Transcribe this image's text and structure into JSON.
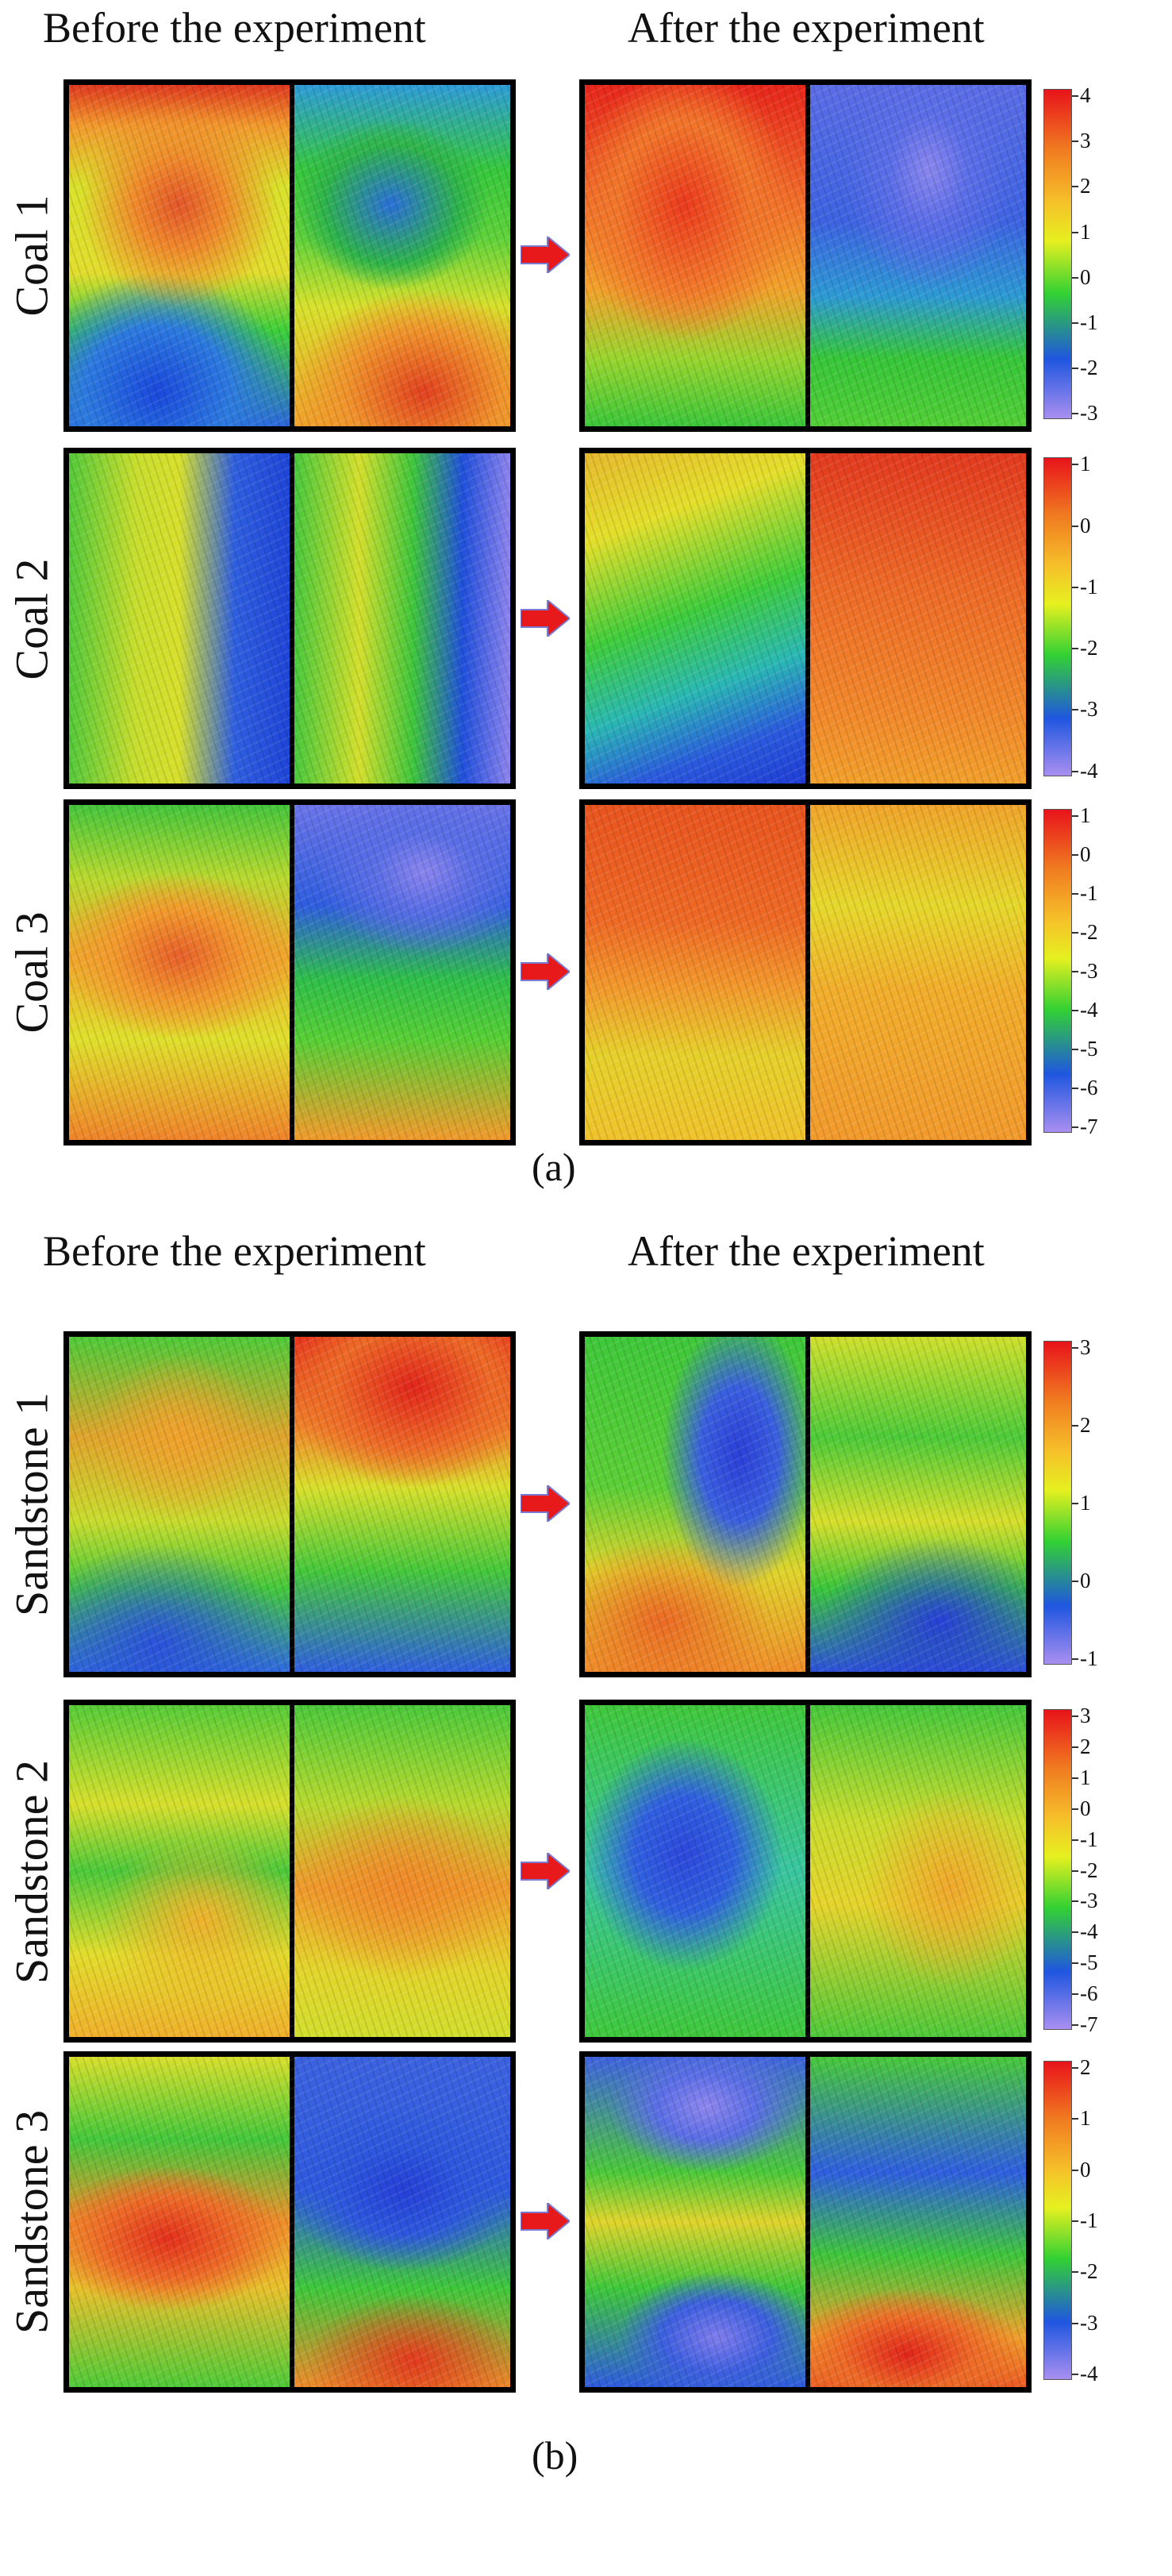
{
  "sections": [
    {
      "caption": "(a)",
      "before_label": "Before the experiment",
      "after_label": "After the experiment",
      "rows": [
        {
          "label": "Coal 1",
          "scale_ticks": [
            "4",
            "3",
            "2",
            "1",
            "0",
            "-1",
            "-2",
            "-3"
          ],
          "before": {
            "left": "radial-gradient(ellipse 45% 30% at 50% 35%, #e4562a 0%, #f08a2b 45%, rgba(240,170,40,0) 100%), radial-gradient(ellipse 60% 35% at 40% 90%, #1a48dd 0%, #2c7ae0 55%, rgba(40,200,60,0) 100%), linear-gradient(to bottom,#e0391f 0%,#f29a2c 12%,#d9e22a 30%,#e2dd2c 55%,#3ccf3a 72%,#2b66dd 100%)",
            "right": "radial-gradient(ellipse 45% 25% at 45% 35%, #2a6fd8 0%, #2fb44a 70%, rgba(50,200,60,0) 100%), radial-gradient(ellipse 60% 30% at 60% 90%, #e2411f 0%, #f0932b 60%, rgba(240,150,40,0) 100%), linear-gradient(to bottom,#2e9cd8 0%,#36c83c 25%,#5fd23a 45%,#d8e12b 65%,#f2a02a 100%)"
          },
          "after": {
            "left": "radial-gradient(ellipse 50% 40% at 45% 35%, #ec3a1d 0%, #f2762a 60%, rgba(245,150,40,0) 100%), linear-gradient(to bottom,#e8261b 0%,#f2702a 35%,#f2a22b 60%,#9ad52e 80%,#3bc73a 100%)",
            "right": "radial-gradient(ellipse 40% 35% at 55% 25%, #8a86ee 0%, #5b6ee8 45%, rgba(40,110,220,0) 100%), linear-gradient(to bottom,#5b6de6 0%,#3d63e2 40%,#2d9ad4 62%,#37c63a 80%,#52cf36 100%)"
          }
        },
        {
          "label": "Coal 2",
          "scale_ticks": [
            "1",
            "0",
            "-1",
            "-2",
            "-3",
            "-4"
          ],
          "before": {
            "left": "linear-gradient(to right,#53c93a 0%,#c7dd2d 30%,#d7e02b 50%,#2f5fe0 75%,#1e45d8 100%)",
            "right": "linear-gradient(to right,#47c83c 0%,#d3df2c 30%,#3fc63c 55%,#2050dc 78%,#8d84ee 100%)"
          },
          "after": {
            "left": "linear-gradient(160deg,#e6b82c 0%,#e4df2a 22%,#3fcd3b 48%,#2ab8b4 68%,#2a5ade 85%,#1f3dd6 100%)",
            "right": "linear-gradient(to bottom,#e33a1f 0%,#ee6a27 40%,#f28a2b 80%,#f2a02b 100%)"
          }
        },
        {
          "label": "Coal 3",
          "scale_ticks": [
            "1",
            "0",
            "-1",
            "-2",
            "-3",
            "-4",
            "-5",
            "-6",
            "-7"
          ],
          "before": {
            "left": "radial-gradient(ellipse 55% 25% at 50% 45%, #e8602a 0%, #f29a2c 55%, rgba(240,190,40,0) 100%), linear-gradient(to bottom,#44c53b 0%,#b9d92e 22%,#f0a82b 45%,#dfe02b 70%,#f0832a 100%)",
            "right": "radial-gradient(ellipse 50% 25% at 60% 20%, #8a84ee 0%, #5a6ee6 45%, rgba(40,90,220,0) 100%), linear-gradient(to bottom,#6b74e8 0%,#2f5ee0 30%,#2fbf4a 52%,#57cf35 70%,#f29a2b 100%)"
          },
          "after": {
            "left": "linear-gradient(to bottom,#e9541f 0%,#ef6a25 35%,#f29a2c 55%,#e6d12b 75%,#f0c22b 100%)",
            "right": "linear-gradient(to bottom,#f0a42a 0%,#e6d82b 30%,#f2ae2b 55%,#f29a2c 100%)"
          }
        }
      ]
    },
    {
      "caption": "(b)",
      "before_label": "Before the experiment",
      "after_label": "After the experiment",
      "rows": [
        {
          "label": "Sandstone 1",
          "scale_ticks": [
            "3",
            "2",
            "1",
            "0",
            "-1"
          ],
          "before": {
            "left": "radial-gradient(ellipse 40% 25% at 50% 30%, #f0a22b 0%, rgba(240,170,40,0) 100%), radial-gradient(ellipse 60% 30% at 40% 92%, #2a52dc 0%, rgba(40,90,220,0) 100%), linear-gradient(to bottom,#4fcb38 0%,#e0a42b 30%,#c8dc2d 55%,#44c83b 75%,#2f6ae0 100%)",
            "right": "radial-gradient(ellipse 60% 30% at 55% 15%, #e2261b 0%, #ee6a27 60%, rgba(240,140,40,0) 100%), linear-gradient(to bottom,#e8341d 0%,#f08a2b 28%,#d9e02b 45%,#45c83b 70%,#2f5fe0 100%)"
          },
          "after": {
            "left": "radial-gradient(ellipse 35% 40% at 70% 35%, #2b3fd8 0%, #3a5fe0 50%, rgba(40,100,220,0) 100%), radial-gradient(ellipse 50% 25% at 35% 85%, #ec6a25 0%, rgba(240,140,40,0) 100%), linear-gradient(to bottom,#3fc83b 0%,#5ccf36 45%,#e0d42b 70%,#f08e2a 100%)",
            "right": "radial-gradient(ellipse 55% 25% at 60% 85%, #2740d8 0%, rgba(40,80,220,0) 100%), linear-gradient(to bottom,#cfe02c 0%,#4dcb39 30%,#d8df2b 55%,#3bc73b 75%,#2d50dc 100%)"
          }
        },
        {
          "label": "Sandstone 2",
          "scale_ticks": [
            "3",
            "2",
            "1",
            "0",
            "-1",
            "-2",
            "-3",
            "-4",
            "-5",
            "-6",
            "-7"
          ],
          "before": {
            "left": "radial-gradient(ellipse 45% 25% at 60% 65%, #f0b22b 0%, rgba(240,190,40,0) 100%), linear-gradient(to bottom,#56cc37 0%,#d8df2b 30%,#4cc93a 50%,#e2dc2b 75%,#f0b02b 100%)",
            "right": "radial-gradient(ellipse 50% 28% at 50% 55%, #f08a2a 0%, rgba(240,150,40,0) 100%), linear-gradient(to bottom,#4bc93a 0%,#b7d92e 30%,#f09a2b 55%,#e3d52b 80%,#d2de2c 100%)"
          },
          "after": {
            "left": "radial-gradient(ellipse 45% 35% at 45% 45%, #2c48dc 0%, #3060e0 50%, rgba(40,100,220,0) 100%), linear-gradient(to bottom,#40c83b 0%,#39c6a0 50%,#3fc83b 100%)",
            "right": "radial-gradient(ellipse 40% 30% at 65% 55%, #f0a82b 0%, rgba(240,170,40,0) 100%), linear-gradient(to bottom,#45c83b 0%,#c9dc2d 35%,#e6d42b 60%,#4ec939 100%)"
          }
        },
        {
          "label": "Sandstone 3",
          "scale_ticks": [
            "2",
            "1",
            "0",
            "-1",
            "-2",
            "-3",
            "-4"
          ],
          "before": {
            "left": "radial-gradient(ellipse 55% 22% at 45% 55%, #e4301c 0%, #ee6a27 55%, rgba(240,150,40,0) 100%), linear-gradient(to bottom,#d8df2b 0%,#44c83b 25%,#f0902a 50%,#e8c02b 70%,#4fcb38 100%)",
            "right": "radial-gradient(ellipse 55% 25% at 50% 40%, #2540d8 0%, #2d58de 55%, rgba(40,90,220,0) 100%), radial-gradient(ellipse 50% 20% at 55% 92%, #e53a1d 0%, rgba(240,120,40,0) 100%), linear-gradient(to bottom,#3c62e0 0%,#2f5be0 40%,#3fc83b 70%,#f08a2a 100%)"
          },
          "after": {
            "left": "radial-gradient(ellipse 45% 20% at 55% 15%, #8e86ee 0%, #5a6ee6 50%, rgba(40,90,220,0) 100%), radial-gradient(ellipse 45% 20% at 60% 85%, #7f7cec 0%, #3c5fe0 55%, rgba(40,90,220,0) 100%), linear-gradient(to bottom,#3f63e0 0%,#4bc93a 35%,#e0d42b 50%,#3ec83b 70%,#2f5be0 100%)",
            "right": "radial-gradient(ellipse 55% 20% at 45% 90%, #e2261b 0%, #ee6a27 55%, rgba(240,140,40,0) 100%), linear-gradient(to bottom,#48c93a 0%,#2f5fe0 35%,#3fc63c 60%,#f0a22b 85%,#ec5a23 100%)"
          }
        }
      ]
    }
  ],
  "colors": {
    "arrow": "#e8191b",
    "colorbar_top": "#e8131b",
    "colorbar_bottom": "#a98ff0"
  }
}
